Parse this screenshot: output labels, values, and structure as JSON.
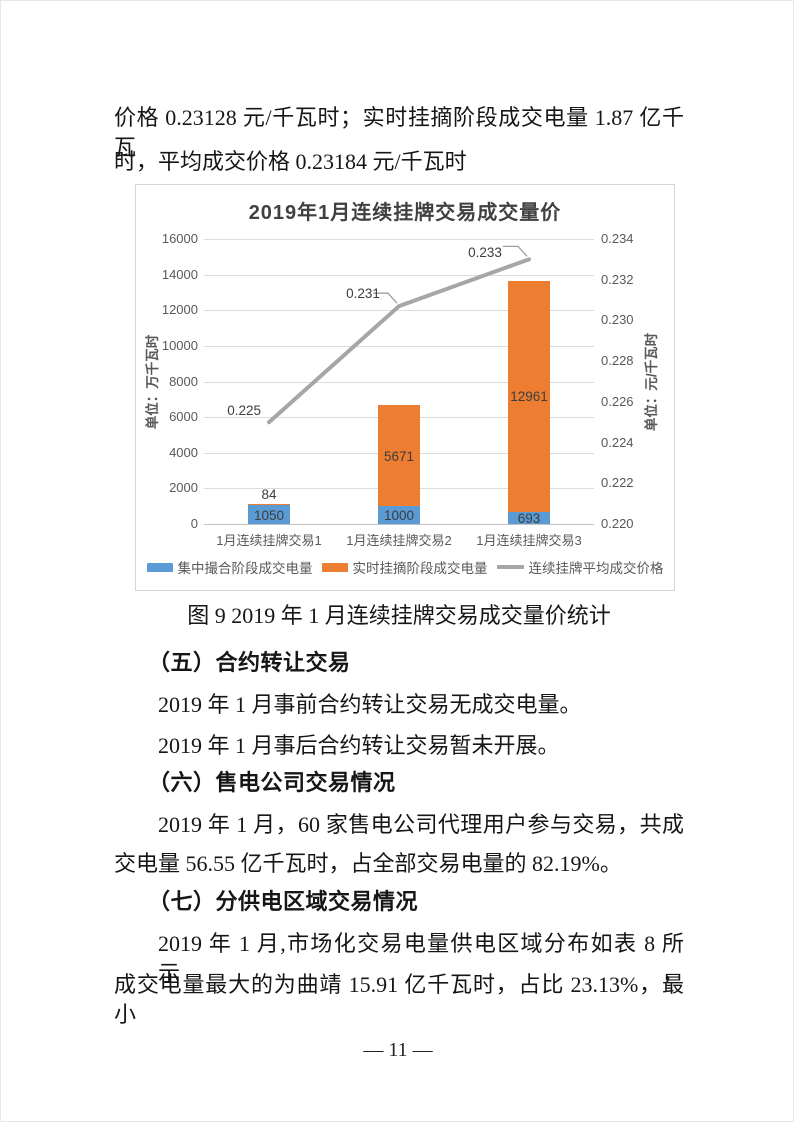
{
  "doc": {
    "top_line1": "价格 0.23128 元/千瓦时；实时挂摘阶段成交电量 1.87 亿千瓦",
    "top_line2": "时，平均成交价格 0.23184 元/千瓦时",
    "figure_caption": "图 9  2019 年 1 月连续挂牌交易成交量价统计",
    "s5_heading": "（五）合约转让交易",
    "s5_p1": "2019 年 1 月事前合约转让交易无成交电量。",
    "s5_p2": "2019 年 1 月事后合约转让交易暂未开展。",
    "s6_heading": "（六）售电公司交易情况",
    "s6_line1": "2019 年 1 月，60 家售电公司代理用户参与交易，共成",
    "s6_line2": "交电量 56.55 亿千瓦时，占全部交易电量的 82.19%。",
    "s7_heading": "（七）分供电区域交易情况",
    "s7_line1": "2019 年 1 月,市场化交易电量供电区域分布如表 8 所示，",
    "s7_line2": "成交电量最大的为曲靖 15.91 亿千瓦时，占比 23.13%，最小",
    "page_number": "— 11 —"
  },
  "chart_data": {
    "type": "bar",
    "subtype": "stacked-bar-with-line",
    "title": "2019年1月连续挂牌交易成交量价",
    "categories": [
      "1月连续挂牌交易1",
      "1月连续挂牌交易2",
      "1月连续挂牌交易3"
    ],
    "bar_series": [
      {
        "name": "集中撮合阶段成交电量",
        "color": "#5b9bd5",
        "values": [
          1050,
          1000,
          693
        ]
      },
      {
        "name": "实时挂摘阶段成交电量",
        "color": "#ed7d31",
        "values": [
          84,
          5671,
          12961
        ]
      }
    ],
    "line_series": {
      "name": "连续挂牌平均成交价格",
      "color": "#a6a6a6",
      "values": [
        0.225,
        0.231,
        0.233
      ],
      "value_labels": [
        "0.225",
        "0.231",
        "0.233"
      ],
      "plotted_values": [
        0.225,
        0.2307,
        0.233
      ]
    },
    "left_axis": {
      "title": "单位：万千瓦时",
      "min": 0,
      "max": 16000,
      "step": 2000
    },
    "right_axis": {
      "title": "单位：元/千瓦时",
      "min": 0.22,
      "max": 0.234,
      "step": 0.002
    },
    "legend_position": "bottom",
    "grid": true
  }
}
